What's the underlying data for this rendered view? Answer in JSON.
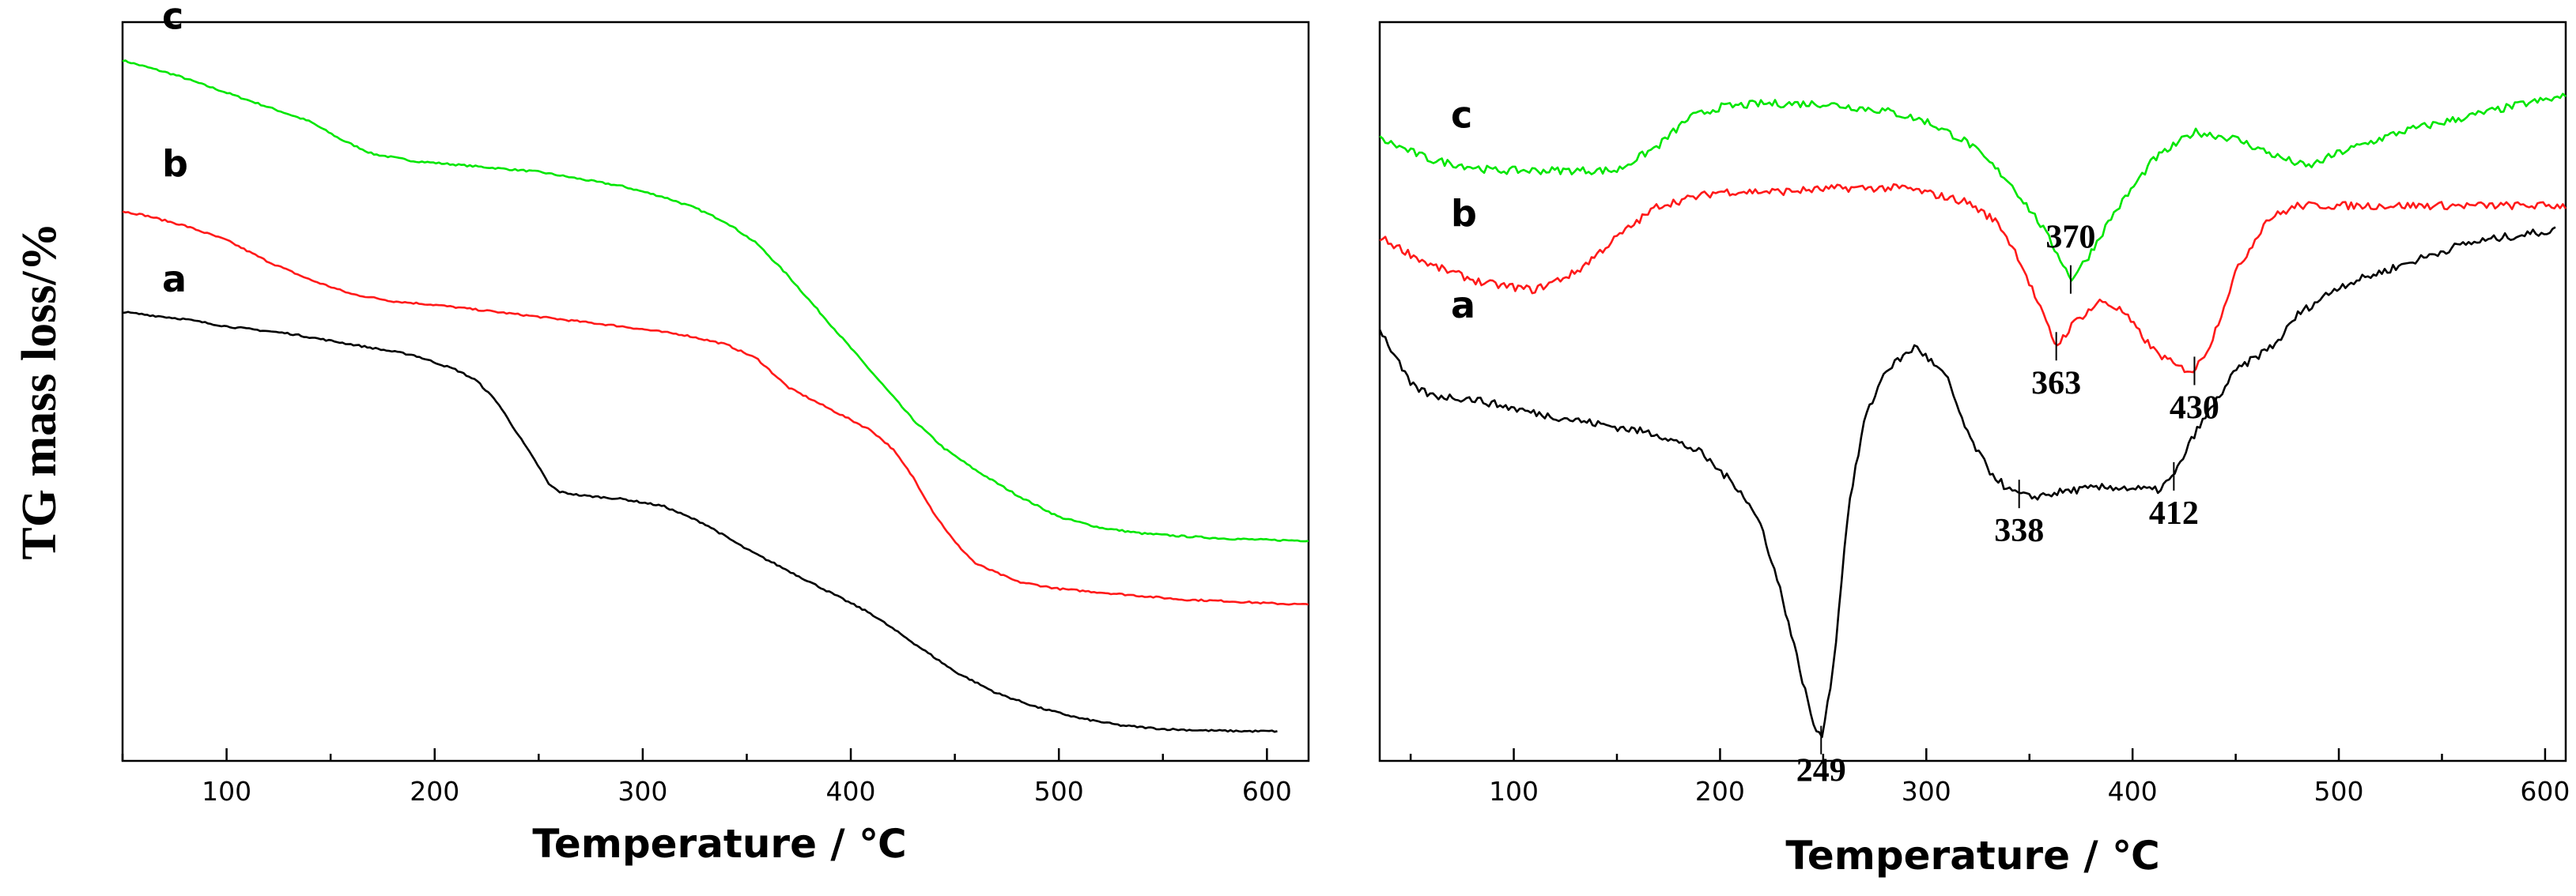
{
  "chart_data": [
    {
      "type": "line",
      "id": "tg",
      "title": "",
      "xlabel": "Temperature / ℃",
      "ylabel": "TG mass loss/%",
      "xlim": [
        50,
        620
      ],
      "ylim": [
        0,
        100
      ],
      "xticks": [
        100,
        200,
        300,
        400,
        500,
        600
      ],
      "series": [
        {
          "name": "c",
          "color": "#00e600",
          "x": [
            50,
            75,
            100,
            125,
            140,
            155,
            170,
            190,
            210,
            230,
            250,
            270,
            290,
            310,
            325,
            340,
            355,
            370,
            385,
            400,
            415,
            430,
            445,
            460,
            480,
            500,
            520,
            540,
            560,
            580,
            600,
            620
          ],
          "y": [
            96,
            94,
            91.5,
            89,
            87.5,
            85,
            83,
            82,
            81.5,
            81,
            80.5,
            79.5,
            78.5,
            77,
            75.5,
            73.5,
            70.5,
            66,
            61,
            56,
            51,
            46,
            42,
            39,
            35.5,
            32.5,
            31,
            30.2,
            29.8,
            29.5,
            29.3,
            29.2
          ]
        },
        {
          "name": "b",
          "color": "#ff1a1a",
          "x": [
            50,
            60,
            80,
            100,
            120,
            140,
            160,
            180,
            200,
            230,
            260,
            290,
            320,
            340,
            355,
            370,
            390,
            410,
            420,
            430,
            440,
            450,
            460,
            480,
            500,
            520,
            540,
            560,
            580,
            600,
            620
          ],
          "y": [
            75,
            74.5,
            73,
            71,
            68,
            65.5,
            63.5,
            62.5,
            62,
            61,
            60,
            59,
            57.8,
            56.5,
            54.5,
            50.5,
            47.5,
            44.5,
            42,
            38,
            33,
            29,
            26,
            23.5,
            22.5,
            22,
            21.5,
            21,
            20.8,
            20.5,
            20.3
          ]
        },
        {
          "name": "a",
          "color": "#000000",
          "x": [
            50,
            80,
            100,
            130,
            160,
            190,
            210,
            220,
            230,
            240,
            250,
            255,
            260,
            270,
            290,
            310,
            330,
            350,
            370,
            390,
            410,
            430,
            450,
            470,
            490,
            510,
            530,
            550,
            570,
            590,
            605
          ],
          "y": [
            61,
            60,
            59,
            58,
            56.5,
            55,
            53,
            51.5,
            48.5,
            44,
            39.5,
            37,
            36,
            35.5,
            35,
            34,
            31.5,
            28,
            25,
            22,
            19,
            15,
            11,
            8,
            6,
            4.5,
            3.5,
            3,
            2.8,
            2.7,
            2.7
          ]
        }
      ]
    },
    {
      "type": "line",
      "id": "dtg",
      "title": "",
      "xlabel": "Temperature / ℃",
      "ylabel": "",
      "xlim": [
        35,
        610
      ],
      "ylim": [
        0,
        100
      ],
      "xticks": [
        100,
        200,
        300,
        400,
        500,
        600
      ],
      "series": [
        {
          "name": "c",
          "color": "#00e600",
          "x": [
            35,
            60,
            90,
            120,
            150,
            170,
            185,
            200,
            220,
            250,
            280,
            300,
            320,
            340,
            355,
            365,
            370,
            378,
            390,
            410,
            430,
            450,
            470,
            485,
            500,
            530,
            560,
            590,
            610
          ],
          "y": [
            87,
            84,
            82.5,
            82.5,
            82.5,
            86,
            90,
            91.5,
            92,
            92,
            91,
            89.5,
            86.5,
            81,
            75,
            70,
            67,
            70,
            76,
            84,
            88,
            87,
            84.5,
            83,
            85,
            88,
            90,
            92,
            93
          ]
        },
        {
          "name": "b",
          "color": "#ff1a1a",
          "x": [
            35,
            60,
            85,
            110,
            130,
            150,
            170,
            200,
            230,
            260,
            290,
            320,
            335,
            345,
            355,
            363,
            372,
            385,
            395,
            410,
            422,
            430,
            438,
            450,
            465,
            480,
            500,
            530,
            560,
            590,
            610
          ],
          "y": [
            73,
            69,
            66.5,
            65.5,
            68,
            73,
            77.5,
            79.5,
            79.5,
            80,
            80,
            78,
            75,
            70,
            63,
            57.5,
            61,
            64,
            62.5,
            57,
            54.5,
            54,
            58,
            68,
            75.5,
            77.5,
            77.5,
            77.5,
            77.5,
            77.5,
            77.5
          ]
        },
        {
          "name": "a",
          "color": "#000000",
          "x": [
            35,
            50,
            60,
            80,
            110,
            140,
            170,
            190,
            210,
            220,
            230,
            240,
            245,
            249,
            255,
            262,
            270,
            280,
            295,
            310,
            320,
            330,
            340,
            350,
            370,
            390,
            412,
            420,
            430,
            450,
            470,
            480,
            500,
            530,
            560,
            580,
            605
          ],
          "y": [
            60,
            52,
            50.5,
            50,
            48,
            46.5,
            45,
            42.5,
            37,
            32,
            22,
            10,
            4,
            1.5,
            12,
            34,
            47,
            54,
            57.5,
            53,
            45,
            40,
            37,
            36,
            37,
            37.5,
            37,
            39,
            45,
            54,
            58,
            62,
            66,
            69,
            72,
            73,
            74
          ]
        }
      ],
      "annotations": [
        {
          "label": "370",
          "series": "c",
          "x": 370
        },
        {
          "label": "363",
          "series": "b",
          "x": 363
        },
        {
          "label": "430",
          "series": "b",
          "x": 430
        },
        {
          "label": "338",
          "series": "a",
          "x": 345
        },
        {
          "label": "412",
          "series": "a",
          "x": 420
        },
        {
          "label": "249",
          "series": "a",
          "x": 249
        }
      ]
    }
  ]
}
